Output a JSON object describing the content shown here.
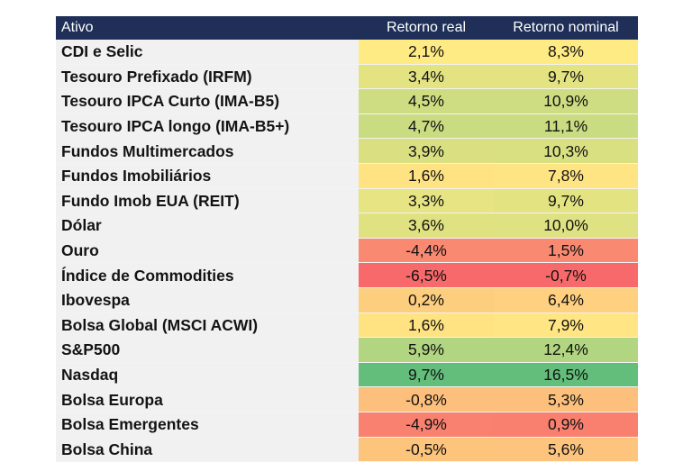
{
  "chart_data": {
    "type": "table",
    "columns": [
      "Ativo",
      "Retorno real",
      "Retorno nominal"
    ],
    "rows": [
      {
        "asset": "CDI e Selic",
        "real": "2,1%",
        "nominal": "8,3%",
        "real_value": 2.1,
        "nominal_value": 8.3
      },
      {
        "asset": "Tesouro Prefixado (IRFM)",
        "real": "3,4%",
        "nominal": "9,7%",
        "real_value": 3.4,
        "nominal_value": 9.7
      },
      {
        "asset": "Tesouro IPCA Curto (IMA-B5)",
        "real": "4,5%",
        "nominal": "10,9%",
        "real_value": 4.5,
        "nominal_value": 10.9
      },
      {
        "asset": "Tesouro IPCA longo (IMA-B5+)",
        "real": "4,7%",
        "nominal": "11,1%",
        "real_value": 4.7,
        "nominal_value": 11.1
      },
      {
        "asset": "Fundos Multimercados",
        "real": "3,9%",
        "nominal": "10,3%",
        "real_value": 3.9,
        "nominal_value": 10.3
      },
      {
        "asset": "Fundos Imobiliários",
        "real": "1,6%",
        "nominal": "7,8%",
        "real_value": 1.6,
        "nominal_value": 7.8
      },
      {
        "asset": "Fundo Imob EUA (REIT)",
        "real": "3,3%",
        "nominal": "9,7%",
        "real_value": 3.3,
        "nominal_value": 9.7
      },
      {
        "asset": "Dólar",
        "real": "3,6%",
        "nominal": "10,0%",
        "real_value": 3.6,
        "nominal_value": 10.0
      },
      {
        "asset": "Ouro",
        "real": "-4,4%",
        "nominal": "1,5%",
        "real_value": -4.4,
        "nominal_value": 1.5
      },
      {
        "asset": "Índice de Commodities",
        "real": "-6,5%",
        "nominal": "-0,7%",
        "real_value": -6.5,
        "nominal_value": -0.7
      },
      {
        "asset": "Ibovespa",
        "real": "0,2%",
        "nominal": "6,4%",
        "real_value": 0.2,
        "nominal_value": 6.4
      },
      {
        "asset": "Bolsa Global (MSCI ACWI)",
        "real": "1,6%",
        "nominal": "7,9%",
        "real_value": 1.6,
        "nominal_value": 7.9
      },
      {
        "asset": "S&P500",
        "real": "5,9%",
        "nominal": "12,4%",
        "real_value": 5.9,
        "nominal_value": 12.4
      },
      {
        "asset": "Nasdaq",
        "real": "9,7%",
        "nominal": "16,5%",
        "real_value": 9.7,
        "nominal_value": 16.5
      },
      {
        "asset": "Bolsa Europa",
        "real": "-0,8%",
        "nominal": "5,3%",
        "real_value": -0.8,
        "nominal_value": 5.3
      },
      {
        "asset": "Bolsa Emergentes",
        "real": "-4,9%",
        "nominal": "0,9%",
        "real_value": -4.9,
        "nominal_value": 0.9
      },
      {
        "asset": "Bolsa China",
        "real": "-0,5%",
        "nominal": "5,6%",
        "real_value": -0.5,
        "nominal_value": 5.6
      }
    ],
    "color_scale": {
      "low": "#f8696b",
      "mid": "#ffeb84",
      "high": "#63be7b"
    },
    "colors": {
      "header_background": "#1f2f57",
      "header_text": "#ffffff",
      "asset_column_background": "#f1f1f1"
    }
  }
}
